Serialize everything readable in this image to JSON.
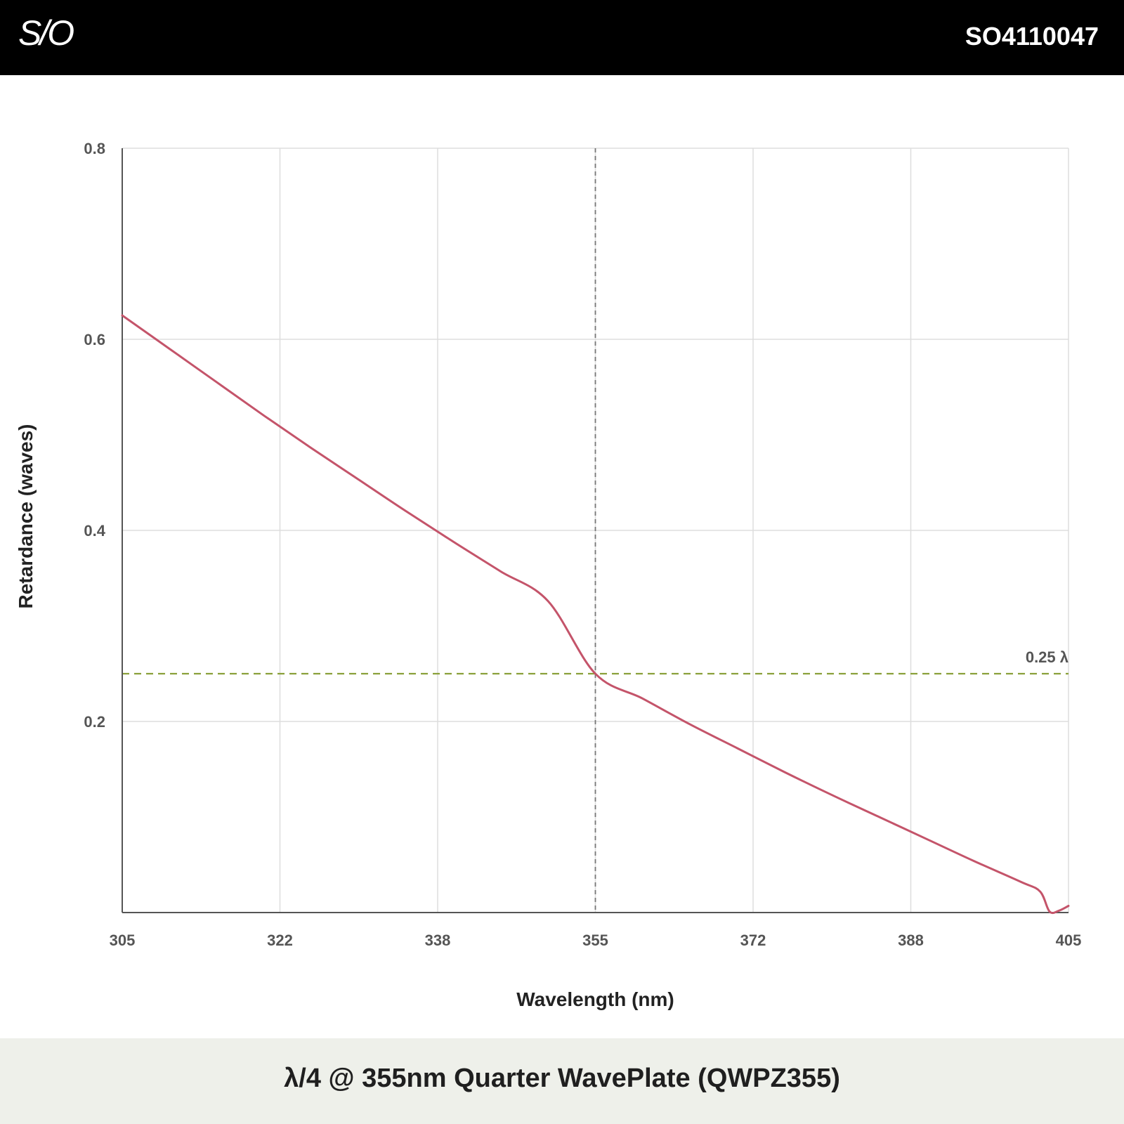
{
  "header": {
    "logo": "S/O",
    "part_number": "SO4110047"
  },
  "footer": {
    "title": "λ/4 @ 355nm Quarter WavePlate (QWPZ355)"
  },
  "colors": {
    "curve": "#c4546a",
    "reference_line": "#8aa03a",
    "marker_line": "#777777",
    "grid": "#dddddd",
    "axis": "#555555"
  },
  "chart_data": {
    "type": "line",
    "xlabel": "Wavelength (nm)",
    "ylabel": "Retardance (waves)",
    "xlim": [
      305,
      405
    ],
    "ylim": [
      0,
      0.8
    ],
    "x_ticks": [
      "305",
      "322",
      "338",
      "355",
      "372",
      "388",
      "405"
    ],
    "y_ticks": [
      "0.8",
      "0.6",
      "0.4",
      "0.2"
    ],
    "grid": true,
    "series": [
      {
        "x": [
          305,
          310,
          315,
          320,
          325,
          330,
          335,
          340,
          345,
          350,
          355,
          360,
          365,
          370,
          375,
          380,
          385,
          390,
          395,
          400,
          402,
          403,
          404,
          405
        ],
        "y": [
          0.625,
          0.59,
          0.555,
          0.52,
          0.486,
          0.453,
          0.42,
          0.388,
          0.357,
          0.326,
          0.25,
          0.224,
          0.197,
          0.172,
          0.147,
          0.123,
          0.1,
          0.077,
          0.054,
          0.032,
          0.022,
          0.001,
          0.002,
          0.007
        ]
      }
    ],
    "reference_line": {
      "y": 0.25,
      "label": "0.25 λ"
    },
    "marker_x": 355
  }
}
